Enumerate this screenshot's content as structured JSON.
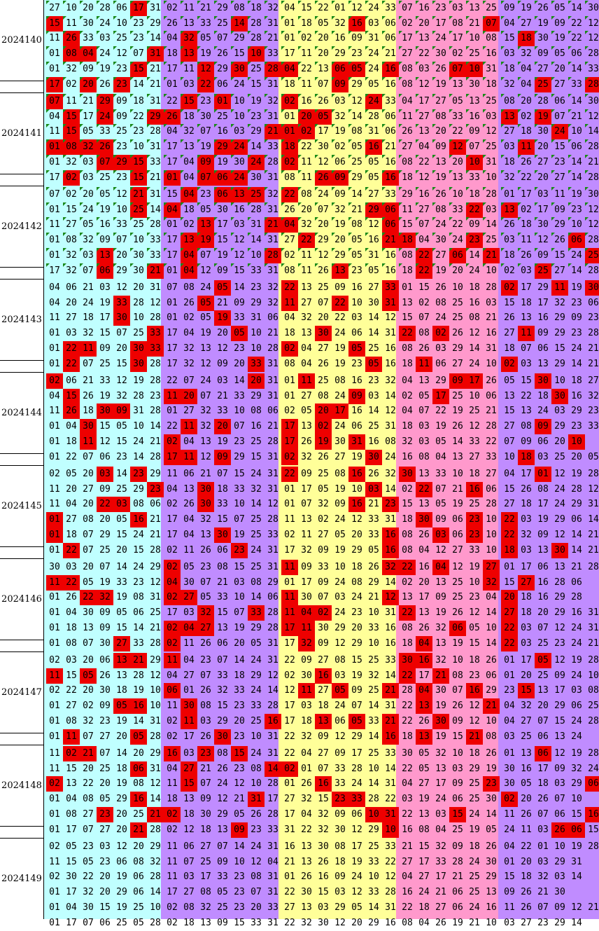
{
  "colors": {
    "cyan": "#c0ffff",
    "purple": "#c08cff",
    "yellow": "#ffff99",
    "pink": "#ff99cc",
    "hit": "#ee0000",
    "mark": "#1a8a1a"
  },
  "periods": [
    {
      "label": "2024140",
      "rows": [
        "27 10 20 28 06 17 31 02 11 21 29 08 18 32 04 15 22 01 12 24 33 07 16 23 03 13 25 09 19 26 05 14 30",
        "15 11 30 24 10 23 29 26 13 33 25 14 28 31 01 18 05 32 16 03 06 02 20 17 08 21 07 04 27 19 09 22 12",
        "11 26 33 03 25 23 14 04 32 05 07 29 28 21 01 02 20 16 09 31 06 17 13 24 17 10 08 15 18 30 19 22 12",
        "01 08 04 24 12 07 31 18 13 19 26 15 10 33 17 11 20 29 23 24 21 27 22 30 02 25 16 03 32 09 05 06 28",
        "01 32 09 19 23 15 21 17 11 12 29 30 25 28 04 22 13 06 05 24 16 08 03 26 07 10 31 18 04 27 20 14 33",
        "17 02 20 26 23 14 21 01 03 22 06 24 15 31 18 11 07 09 29 05 16 08 12 19 13 30 18 32 04 25 27 33 28"
      ],
      "hits": [
        [
          5
        ],
        [
          0,
          11,
          18,
          26
        ],
        [
          1,
          8,
          28,
          33
        ],
        [
          1,
          2,
          6,
          8,
          12
        ],
        [
          5,
          9,
          11,
          13,
          14,
          17,
          18,
          20,
          24,
          25
        ],
        [
          0,
          2,
          4,
          9,
          17,
          29,
          32
        ]
      ]
    },
    {
      "label": "2024141",
      "rows": [
        "07 11 21 29 09 18 31 22 15 23 01 10 19 32 02 16 26 03 12 24 33 04 17 27 05 13 25 08 20 28 06 14 30",
        "04 15 17 24 09 22 29 26 18 30 25 10 23 31 01 20 05 32 14 28 06 11 27 08 33 16 03 13 02 19 07 21 12",
        "11 15 05 33 25 23 28 04 32 07 16 03 29 21 01 02 17 19 08 31 06 26 13 20 22 09 12 27 18 30 24 10 14",
        "01 08 32 26 23 10 31 17 13 19 29 24 14 33 18 22 30 02 05 16 21 27 04 09 12 07 25 03 11 20 15 06 28",
        "01 32 03 07 29 15 33 17 04 09 19 30 24 28 02 11 12 06 25 05 16 08 22 13 20 10 31 18 26 27 23 14 21",
        "17 02 03 25 23 15 21 01 04 07 06 24 30 31 08 11 26 09 29 05 16 18 12 19 13 33 10 32 22 20 27 14 28"
      ],
      "hits": [
        [
          0,
          3,
          8,
          10,
          14,
          19
        ],
        [
          1,
          3,
          6,
          7,
          15,
          16,
          27,
          29
        ],
        [
          1,
          13,
          14,
          15,
          30
        ],
        [
          0,
          1,
          2,
          3,
          10,
          11,
          14,
          19,
          24,
          28
        ],
        [
          3,
          4,
          5,
          9,
          12,
          14,
          25
        ],
        [
          1,
          5,
          7,
          9,
          10,
          11,
          16,
          17,
          20
        ]
      ]
    },
    {
      "label": "2024142",
      "rows": [
        "07 02 20 05 12 21 31 15 04 23 06 13 25 32 22 08 24 09 14 27 33 29 16 26 10 18 28 01 17 03 11 19 30",
        "01 15 24 19 10 25 14 04 18 05 30 16 28 31 26 20 07 32 21 29 06 11 27 08 33 22 03 13 02 17 09 23 12",
        "11 27 05 16 33 25 28 01 02 13 17 03 31 21 04 32 20 19 08 12 06 15 07 24 22 09 14 26 18 30 29 10 12",
        "01 08 32 09 07 10 33 17 13 19 15 12 14 31 27 22 29 20 05 16 21 18 04 30 24 23 25 03 11 12 26 06 28",
        "01 32 03 13 20 30 33 17 04 07 19 12 10 28 02 11 12 29 05 31 16 08 22 27 06 14 21 18 26 09 15 24 25",
        "17 32 07 06 29 30 21 01 04 12 09 15 33 31 08 11 26 13 23 05 16 18 22 19 20 24 10 02 03 25 27 14 28"
      ],
      "hits": [
        [
          5,
          8,
          10,
          11,
          12,
          14
        ],
        [
          5,
          7,
          19,
          20,
          25,
          27
        ],
        [
          9,
          13,
          14,
          20
        ],
        [
          8,
          9,
          15,
          20,
          21,
          25,
          31
        ],
        [
          3,
          8,
          13,
          22,
          24,
          26,
          32
        ],
        [
          3,
          6,
          8,
          17,
          22,
          29
        ]
      ]
    },
    {
      "label": "2024143",
      "rows": [
        "04 06 21 03 12 20 31 07 08 24 05 14 23 32 22 13 25 09 16 27 33 01 15 26 10 18 28 02 17 29 11 19 30",
        "04 20 24 19 33 28 12 01 26 05 21 09 29 32 11 27 07 22 10 30 31 13 02 08 25 16 03 15 18 17 32 23 06",
        "11 27 18 17 30 10 28 01 02 05 19 33 31 06 04 32 20 22 03 14 12 15 07 24 25 08 21 26 13 16 29 09 23",
        "01 03 32 15 07 25 33 17 04 19 20 05 10 21 18 13 30 24 06 14 31 22 08 02 26 12 16 27 11 09 29 23 28",
        "01 22 11 09 20 30 33 17 32 13 12 23 10 28 02 04 27 19 05 25 16 08 26 03 29 14 31 18 07 06 15 24 21",
        "01 22 07 25 15 30 28 17 32 12 09 20 33 31 08 04 26 19 23 05 16 18 11 06 27 24 10 02 03 13 29 14 21"
      ],
      "hits": [
        [
          10,
          14,
          20,
          27,
          30,
          32
        ],
        [
          4,
          9,
          14,
          17,
          20
        ],
        [
          4,
          10
        ],
        [
          6,
          11,
          16,
          21,
          23,
          28
        ],
        [
          1,
          2,
          5,
          6,
          14,
          18
        ],
        [
          1,
          5,
          12,
          19,
          22,
          27
        ]
      ]
    },
    {
      "label": "2024144",
      "rows": [
        "02 06 21 33 12 19 28 22 07 24 03 14 20 31 01 11 25 08 16 23 32 04 13 29 09 17 26 05 15 30 10 18 27",
        "04 15 26 19 32 28 23 11 20 07 21 33 29 31 01 27 08 24 09 03 14 02 05 17 25 10 06 13 22 18 30 16 32",
        "11 26 18 30 09 31 28 01 27 32 33 10 08 06 02 05 20 17 16 14 12 04 07 22 19 25 21 15 13 24 03 29 23",
        "01 04 30 15 05 10 14 22 11 32 20 07 16 21 17 13 02 24 06 25 31 18 03 19 26 12 28 27 08 09 29 23 33",
        "01 18 11 12 15 24 21 02 04 13 19 23 25 28 17 26 19 30 31 16 08 32 03 05 14 33 22 07 09 06 20 10",
        "01 22 07 06 23 14 28 17 11 12 09 29 15 31 02 32 26 27 19 30 24 16 08 04 13 27 33 10 18 03 25 20 05 21"
      ],
      "hits": [
        [
          0,
          12,
          15,
          24,
          25,
          29
        ],
        [
          1,
          7,
          8,
          18,
          23,
          30
        ],
        [
          1,
          3,
          4,
          16,
          17
        ],
        [
          2,
          8,
          10,
          14,
          16,
          29
        ],
        [
          2,
          7,
          14,
          16,
          18,
          31
        ],
        [
          7,
          8,
          10,
          14,
          19,
          28
        ]
      ]
    },
    {
      "label": "2024145",
      "rows": [
        "02 05 20 03 14 23 29 11 06 21 07 15 24 31 22 09 25 08 16 26 32 30 13 33 10 18 27 04 17 01 12 19 28",
        "11 20 27 09 25 29 23 04 13 30 18 33 32 31 01 17 05 19 10 03 14 02 22 07 21 16 06 15 26 08 24 28 12",
        "11 04 20 22 03 08 06 02 26 30 33 10 14 12 01 07 32 09 16 21 23 15 13 05 19 25 28 27 18 17 24 29 31",
        "01 27 08 20 05 16 21 17 04 32 15 07 25 28 11 13 02 24 12 33 31 18 30 09 06 23 10 22 03 19 29 06 14",
        "01 18 07 29 15 24 21 17 04 13 30 19 25 33 02 11 27 05 20 33 16 08 26 03 06 23 10 22 32 09 12 14 21",
        "01 22 07 25 20 15 28 02 11 26 06 23 24 31 17 32 09 19 29 05 16 08 04 12 27 33 10 18 03 13 30 14 21"
      ],
      "hits": [
        [
          3,
          5,
          14,
          18,
          21,
          29
        ],
        [
          6,
          9,
          19,
          22,
          25
        ],
        [
          3,
          4,
          9,
          18,
          20
        ],
        [
          0,
          5,
          22,
          25,
          27
        ],
        [
          0,
          10,
          20,
          23,
          25,
          27
        ],
        [
          1,
          11,
          20,
          27,
          30
        ]
      ]
    },
    {
      "label": "2024146",
      "rows": [
        "30 03 20 07 14 24 29 02 05 23 08 15 25 31 11 09 33 10 18 26 32 22 16 04 12 19 27 01 17 06 13 21 28",
        "11 22 05 19 33 23 12 04 30 07 21 03 08 29 01 17 09 24 08 29 14 02 20 13 25 10 32 15 27 16 28 06",
        "01 26 22 32 19 08 31 02 27 05 33 10 14 06 11 30 07 03 24 21 12 13 17 09 25 23 04 20 18 16 29 28",
        "01 04 30 09 05 06 25 17 03 32 15 07 33 28 11 04 02 24 23 10 31 22 13 19 26 12 14 27 18 20 29 16 31",
        "01 18 13 09 15 14 21 02 04 27 13 19 29 28 17 11 30 29 20 33 16 08 26 32 06 05 10 22 03 07 12 24 31",
        "01 08 07 30 27 33 28 02 11 26 06 20 05 31 17 32 09 12 29 10 16 18 04 13 19 15 14 22 03 25 23 24 21"
      ],
      "hits": [
        [
          7,
          14,
          20,
          21,
          23,
          26
        ],
        [
          0,
          1,
          7,
          26,
          28
        ],
        [
          2,
          3,
          7,
          8,
          14,
          20,
          27
        ],
        [
          9,
          12,
          14,
          15,
          16,
          21,
          27
        ],
        [
          7,
          8,
          9,
          14,
          15,
          24,
          27
        ],
        [
          4,
          7,
          15,
          22,
          27
        ]
      ]
    },
    {
      "label": "2024147",
      "rows": [
        "02 03 20 06 13 21 29 11 04 23 07 14 24 31 22 09 27 08 15 25 33 30 16 32 10 18 26 01 17 05 12 19 28",
        "11 15 05 26 13 28 12 04 27 07 33 18 29 12 02 30 16 03 19 32 14 22 17 21 08 23 06 01 20 25 09 24 10",
        "02 22 20 30 18 19 10 06 01 26 32 33 24 14 12 11 27 05 09 25 21 28 04 30 07 16 29 23 15 13 17 03 08 31",
        "01 27 02 09 05 16 10 11 30 08 15 23 33 28 17 03 18 24 07 14 31 22 13 19 26 12 21 04 32 20 29 06 25",
        "01 08 32 23 19 14 31 02 11 03 29 20 25 16 17 18 13 06 05 33 21 22 26 30 09 12 10 04 27 07 15 24 28",
        "01 11 07 27 20 05 28 02 17 26 30 23 10 31 22 32 09 12 29 14 16 18 13 19 15 21 08 03 25 06 13 24"
      ],
      "hits": [
        [
          4,
          5,
          7,
          21,
          22,
          29
        ],
        [
          0,
          2,
          16,
          21,
          23
        ],
        [
          7,
          15,
          17,
          20,
          22,
          25,
          28
        ],
        [
          4,
          5,
          8,
          22,
          26
        ],
        [
          8,
          13,
          16,
          18,
          20,
          23
        ],
        [
          1,
          5,
          10,
          20,
          22,
          25
        ]
      ]
    },
    {
      "label": "2024148",
      "rows": [
        "11 02 21 07 14 20 29 16 03 23 08 15 24 31 22 04 27 09 17 25 33 30 05 32 10 18 26 01 13 06 12 19 28",
        "11 15 20 25 18 06 31 04 27 21 26 23 08 14 02 01 07 33 28 10 14 22 05 13 03 29 19 30 16 17 09 32 24",
        "02 13 22 20 19 08 12 11 15 07 24 12 10 28 01 26 16 33 24 14 31 04 27 17 09 25 23 30 05 18 03 29 06",
        "01 04 08 05 29 16 14 18 13 09 12 21 31 17 27 32 15 23 33 28 22 03 19 24 06 25 30 02 20 26 07 10",
        "01 08 27 23 20 25 21 02 18 30 29 05 26 28 17 04 32 09 06 10 31 22 13 03 15 24 14 11 26 07 06 15 16",
        "01 17 07 27 20 21 28 02 12 18 13 09 23 33 31 22 32 30 12 29 10 16 08 04 25 19 05 24 11 03 26 06 15 14"
      ],
      "hits": [
        [
          1,
          2,
          7,
          9,
          11,
          29
        ],
        [
          5,
          8,
          13,
          14
        ],
        [
          0,
          8,
          16,
          26,
          32
        ],
        [
          5,
          12,
          17,
          18,
          27
        ],
        [
          3,
          6,
          7,
          19,
          20,
          24,
          32
        ],
        [
          5,
          11,
          20,
          30,
          31
        ]
      ]
    },
    {
      "label": "2024149",
      "rows": [
        "02 05 23 03 12 20 29 11 06 27 07 14 24 31 16 13 30 08 17 25 33 21 15 32 09 18 26 04 22 01 10 19 28",
        "11 15 05 23 06 08 32 11 07 25 09 10 12 04 21 13 26 18 19 33 22 27 17 33 28 24 30 01 20 03 29 31",
        "02 30 22 20 19 06 28 11 03 17 33 23 08 31 01 26 16 09 24 10 12 04 27 17 21 25 29 15 18 32 03 14",
        "01 17 32 20 29 06 14 17 27 08 05 23 07 31 22 30 15 03 12 33 28 16 24 21 06 25 13 09 26 21 30",
        "01 04 30 15 19 25 10 02 08 32 25 23 20 33 27 13 03 29 05 14 31 22 18 27 06 24 16 11 26 07 09 12 21",
        "01 17 07 06 25 05 28 02 18 13 09 15 33 31 22 32 30 12 20 29 16 08 04 26 19 21 10 03 27 23 29 14"
      ],
      "hits": [
        [],
        [],
        [],
        [],
        [],
        []
      ]
    }
  ]
}
